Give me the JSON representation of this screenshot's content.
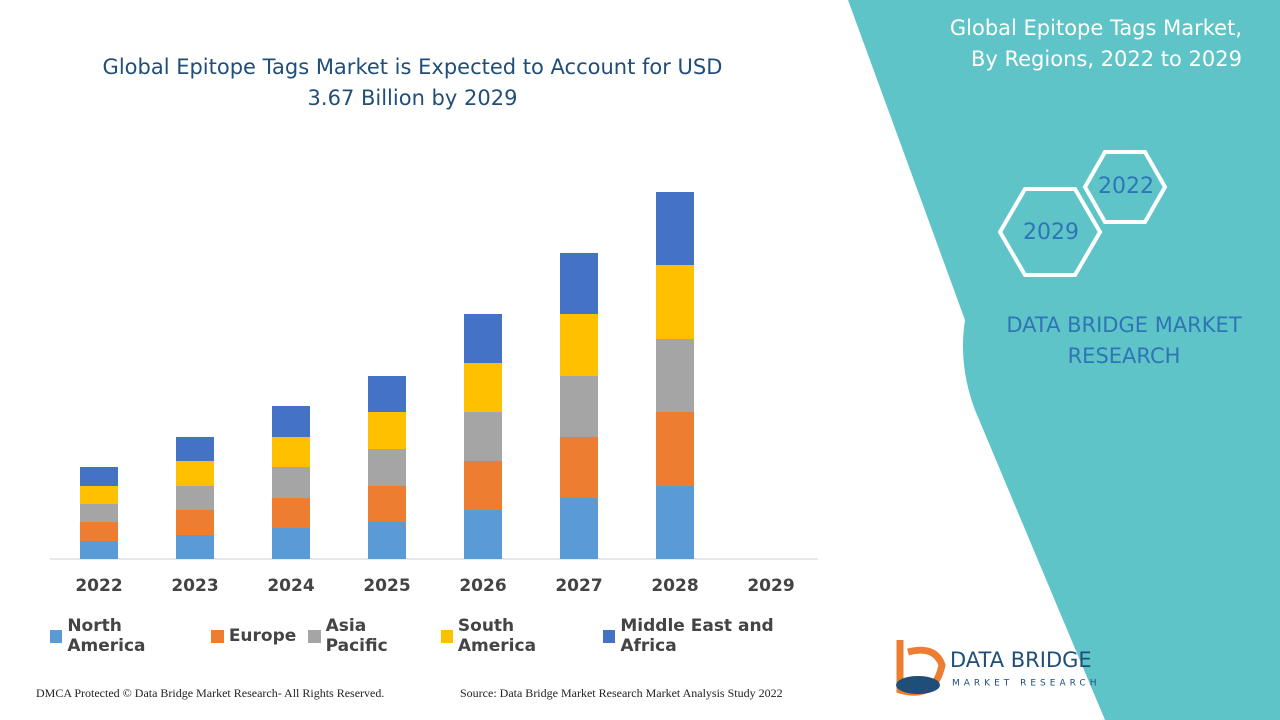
{
  "chart_data": {
    "type": "stacked-bar",
    "title": "Global Epitope Tags Market is Expected to Account for USD 3.67 Billion by 2029",
    "categories": [
      "2022",
      "2023",
      "2024",
      "2025",
      "2026",
      "2027",
      "2028",
      "2029"
    ],
    "series": [
      {
        "name": "North America",
        "color": "#5b9bd5",
        "values": [
          18,
          24,
          31,
          37,
          49,
          61,
          73,
          null
        ]
      },
      {
        "name": "Europe",
        "color": "#ed7d31",
        "values": [
          19,
          25,
          30,
          36,
          49,
          61,
          74,
          null
        ]
      },
      {
        "name": "Asia Pacific",
        "color": "#a5a5a5",
        "values": [
          18,
          24,
          31,
          37,
          49,
          61,
          73,
          null
        ]
      },
      {
        "name": "South America",
        "color": "#ffc000",
        "values": [
          18,
          25,
          30,
          37,
          49,
          62,
          74,
          null
        ]
      },
      {
        "name": "Middle East and Africa",
        "color": "#4472c4",
        "values": [
          19,
          24,
          31,
          36,
          49,
          61,
          73,
          null
        ]
      }
    ],
    "ylim": [
      0,
      400
    ]
  },
  "panel": {
    "title_lines": [
      "Global Epitope Tags Market,",
      "By Regions, 2022 to 2029"
    ],
    "hex_years": [
      "2022",
      "2029"
    ],
    "brand_lines": [
      "DATA BRIDGE MARKET",
      "RESEARCH"
    ]
  },
  "logo": {
    "name": "DATA BRIDGE",
    "tagline": "MARKET RESEARCH"
  },
  "footer": {
    "copyright": "DMCA Protected © Data Bridge Market Research- All Rights Reserved.",
    "source": "Source: Data Bridge Market Research Market Analysis Study 2022"
  }
}
